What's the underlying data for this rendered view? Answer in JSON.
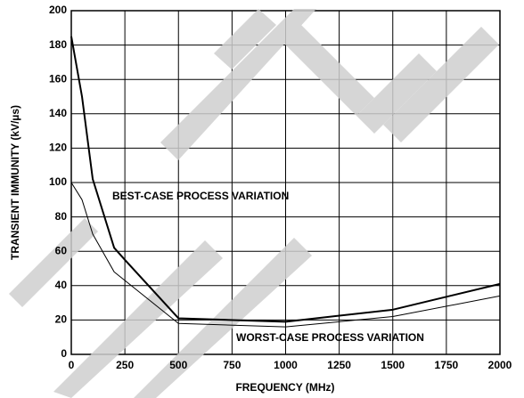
{
  "chart_data": {
    "type": "line",
    "x_label": "FREQUENCY (MHz)",
    "y_label": "TRANSIENT IMMUNITY (kV/µs)",
    "x": [
      0,
      50,
      100,
      200,
      250,
      500,
      1000,
      1500,
      2000
    ],
    "series": [
      {
        "name": "BEST-CASE PROCESS VARIATION",
        "color": "#000000",
        "line_width": 2,
        "values": [
          185,
          150,
          102,
          62,
          55,
          21,
          19,
          26,
          41
        ]
      },
      {
        "name": "WORST-CASE PROCESS VARIATION",
        "color": "#000000",
        "line_width": 1,
        "values": [
          100,
          90,
          70,
          48,
          43,
          18,
          16,
          22,
          34
        ]
      }
    ],
    "xlim": [
      0,
      2000
    ],
    "xticks": [
      0,
      250,
      500,
      750,
      1000,
      1250,
      1500,
      1750,
      2000
    ],
    "ylim": [
      0,
      200
    ],
    "yticks": [
      0,
      20,
      40,
      60,
      80,
      100,
      120,
      140,
      160,
      180,
      200
    ],
    "grid": true
  }
}
